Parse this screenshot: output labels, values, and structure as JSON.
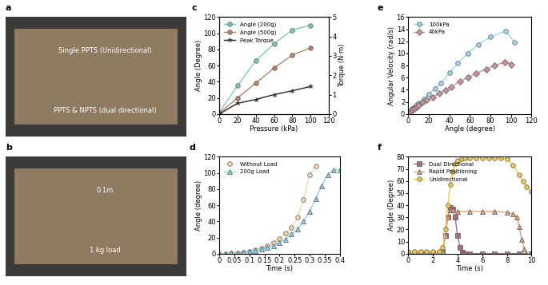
{
  "chart_data": [
    {
      "type": "line",
      "title": "c",
      "x_label": "Pressure (kPa)",
      "y_label": "Angle (Degree)",
      "y2_label": "Torque (N·m)",
      "xlim": [
        0,
        120
      ],
      "xticks": [
        0,
        20,
        40,
        60,
        80,
        100,
        120
      ],
      "ylim": [
        0,
        120
      ],
      "yticks": [
        0,
        20,
        40,
        60,
        80,
        100,
        120
      ],
      "y2lim": [
        0,
        5
      ],
      "y2ticks": [
        0,
        1,
        2,
        3,
        4,
        5
      ],
      "legend": "upper left",
      "series": [
        {
          "name": "Angle (200g)",
          "color": "#7fc9b8",
          "marker": "circle",
          "line_style": "solid",
          "x": [
            0,
            20,
            40,
            60,
            80,
            100
          ],
          "values": [
            2,
            35,
            66,
            87,
            104,
            110
          ]
        },
        {
          "name": "Angle (500g)",
          "color": "#b5846b",
          "marker": "circle",
          "line_style": "solid",
          "x": [
            0,
            20,
            40,
            60,
            80,
            100
          ],
          "values": [
            1,
            20,
            38,
            57,
            73,
            82
          ]
        },
        {
          "name": "Peak Torque",
          "color": "#222222",
          "marker": "star",
          "line_style": "solid",
          "axis": "y2",
          "x": [
            0,
            20,
            40,
            60,
            80,
            100
          ],
          "values": [
            0,
            0.55,
            0.75,
            1.0,
            1.2,
            1.42
          ]
        }
      ]
    },
    {
      "type": "line",
      "title": "e",
      "x_label": "Angle (degree)",
      "y_label": "Angular Velocity (rad/s)",
      "xlim": [
        0,
        120
      ],
      "xticks": [
        0,
        20,
        40,
        60,
        80,
        100,
        120
      ],
      "ylim": [
        0,
        16
      ],
      "yticks": [
        0,
        2,
        4,
        6,
        8,
        10,
        12,
        14,
        16
      ],
      "legend": "upper left",
      "series": [
        {
          "name": "100kPa",
          "color": "#9fd8ec",
          "marker": "circle",
          "line_style": "solid",
          "x": [
            0,
            2,
            4,
            6,
            8,
            10,
            15,
            20,
            26,
            32,
            40,
            48,
            58,
            68,
            80,
            95,
            103
          ],
          "values": [
            0.2,
            0.5,
            0.9,
            1.2,
            1.5,
            1.8,
            2.5,
            3.3,
            4.2,
            5.1,
            6.8,
            8.4,
            10.0,
            11.5,
            12.7,
            13.7,
            11.9
          ]
        },
        {
          "name": "40kPa",
          "color": "#c8959b",
          "marker": "diamond",
          "line_style": "solid",
          "x": [
            0,
            2,
            4,
            6,
            8,
            10,
            14,
            18,
            24,
            30,
            36,
            42,
            50,
            58,
            66,
            76,
            84,
            94,
            100
          ],
          "values": [
            0.2,
            0.4,
            0.7,
            0.9,
            1.2,
            1.4,
            1.9,
            2.3,
            2.8,
            3.4,
            3.9,
            4.5,
            5.4,
            6.0,
            6.7,
            7.4,
            8.0,
            8.6,
            8.2
          ]
        }
      ]
    },
    {
      "type": "line",
      "title": "d",
      "x_label": "Time (s)",
      "y_label": "Angle (degree)",
      "xlim": [
        0,
        0.4
      ],
      "xticks": [
        0,
        0.05,
        0.1,
        0.15,
        0.2,
        0.25,
        0.3,
        0.35,
        0.4
      ],
      "ylim": [
        0,
        120
      ],
      "yticks": [
        0,
        20,
        40,
        60,
        80,
        100,
        120
      ],
      "legend": "upper left",
      "series": [
        {
          "name": "Without Load",
          "color": "#f5d9a8",
          "marker": "circle",
          "line_style": "solid",
          "x": [
            0,
            0.02,
            0.04,
            0.06,
            0.08,
            0.1,
            0.12,
            0.14,
            0.16,
            0.18,
            0.2,
            0.22,
            0.24,
            0.26,
            0.28,
            0.3,
            0.32
          ],
          "values": [
            0,
            0,
            0.5,
            1,
            2,
            3,
            5,
            7,
            10,
            14,
            19,
            25,
            32,
            45,
            67,
            98,
            108
          ]
        },
        {
          "name": "200g Load",
          "color": "#8fd3e8",
          "marker": "triangle",
          "line_style": "solid",
          "x": [
            0,
            0.02,
            0.04,
            0.06,
            0.08,
            0.1,
            0.12,
            0.14,
            0.16,
            0.18,
            0.2,
            0.22,
            0.24,
            0.26,
            0.28,
            0.3,
            0.32,
            0.34,
            0.36,
            0.38,
            0.4
          ],
          "values": [
            0,
            0,
            0.5,
            1,
            2,
            3,
            4,
            6,
            8,
            10,
            14,
            18,
            24,
            30,
            40,
            52,
            68,
            84,
            98,
            104,
            104
          ]
        }
      ]
    },
    {
      "type": "line",
      "title": "f",
      "x_label": "Time (s)",
      "y_label": "Angle (Degree)",
      "xlim": [
        0,
        10
      ],
      "xticks": [
        0,
        2,
        4,
        6,
        8,
        10
      ],
      "ylim": [
        0,
        80
      ],
      "yticks": [
        0,
        10,
        20,
        30,
        40,
        50,
        60,
        70,
        80
      ],
      "legend": "upper left",
      "series": [
        {
          "name": "Dual Directional",
          "color": "#a07080",
          "marker": "square",
          "line_style": "solid",
          "x": [
            0,
            0.5,
            1,
            1.5,
            2,
            2.5,
            2.8,
            3.0,
            3.2,
            3.4,
            3.6,
            3.8,
            4.0,
            4.2,
            4.4,
            4.6,
            5,
            6,
            7,
            8,
            9,
            10
          ],
          "values": [
            0,
            0,
            0,
            0,
            0,
            0,
            2,
            15,
            30,
            38,
            37,
            30,
            15,
            5,
            1,
            0,
            0,
            0,
            0,
            0,
            0,
            0
          ]
        },
        {
          "name": "Rapid Positioning",
          "color": "#e0a080",
          "marker": "triangle",
          "line_style": "solid",
          "x": [
            0,
            0.5,
            1,
            1.5,
            2,
            2.5,
            2.8,
            3.0,
            3.2,
            3.4,
            3.6,
            4,
            5,
            6,
            7,
            8,
            8.5,
            8.8,
            9.0,
            9.2,
            9.4,
            9.6,
            10
          ],
          "values": [
            0,
            0,
            0,
            0,
            0,
            0,
            2,
            15,
            30,
            36,
            36,
            35,
            35,
            35,
            35,
            34,
            33,
            30,
            22,
            12,
            4,
            0,
            0
          ]
        },
        {
          "name": "Unidirectional",
          "color": "#f2c94c",
          "marker": "circle",
          "line_style": "solid",
          "x": [
            0,
            0.5,
            1,
            1.5,
            2,
            2.5,
            2.8,
            3.0,
            3.2,
            3.4,
            3.6,
            3.8,
            4.0,
            4.3,
            4.6,
            5,
            5.5,
            6,
            6.5,
            7,
            7.5,
            8,
            8.5,
            9,
            9.3,
            9.6,
            10
          ],
          "values": [
            2,
            2,
            2,
            2,
            2,
            2,
            5,
            20,
            40,
            57,
            68,
            74,
            77,
            78,
            79,
            79,
            79,
            79,
            79,
            79,
            79,
            78,
            73,
            65,
            60,
            55,
            51
          ]
        }
      ]
    }
  ],
  "photos": [
    {
      "label": "a",
      "texts": [
        "Single PPTS (Unidirectional)",
        "PPTS & NPTS (dual directional)"
      ]
    },
    {
      "label": "b",
      "texts": [
        "0.1m",
        "1 kg load"
      ]
    }
  ]
}
